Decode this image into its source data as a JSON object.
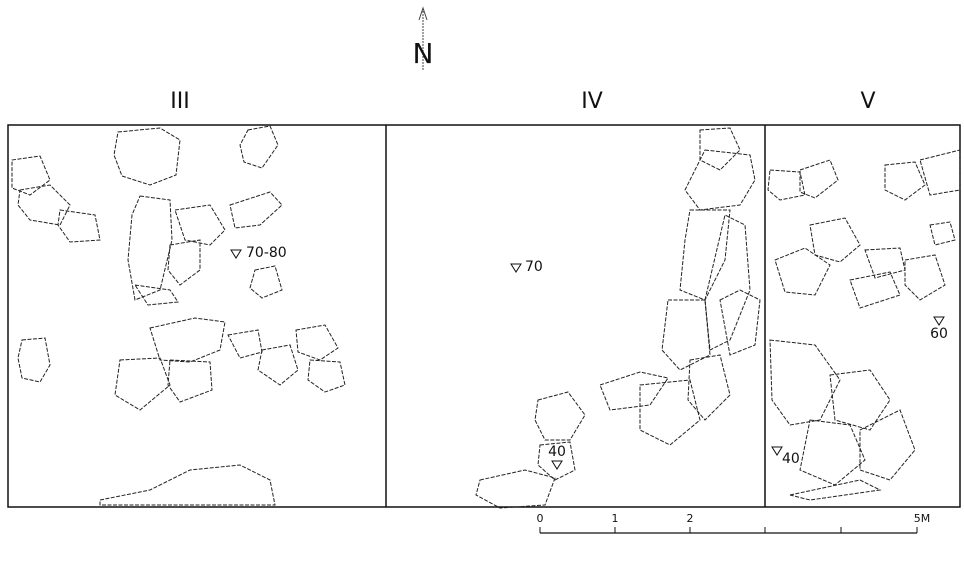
{
  "north": "N",
  "sections": [
    {
      "label": "III"
    },
    {
      "label": "IV"
    },
    {
      "label": "V"
    }
  ],
  "elevations": [
    {
      "label": "70-80"
    },
    {
      "label": "70"
    },
    {
      "label": "40"
    },
    {
      "label": "60"
    },
    {
      "label": "40"
    }
  ],
  "scale": {
    "labels": [
      "0",
      "1",
      "2",
      "5M"
    ]
  }
}
